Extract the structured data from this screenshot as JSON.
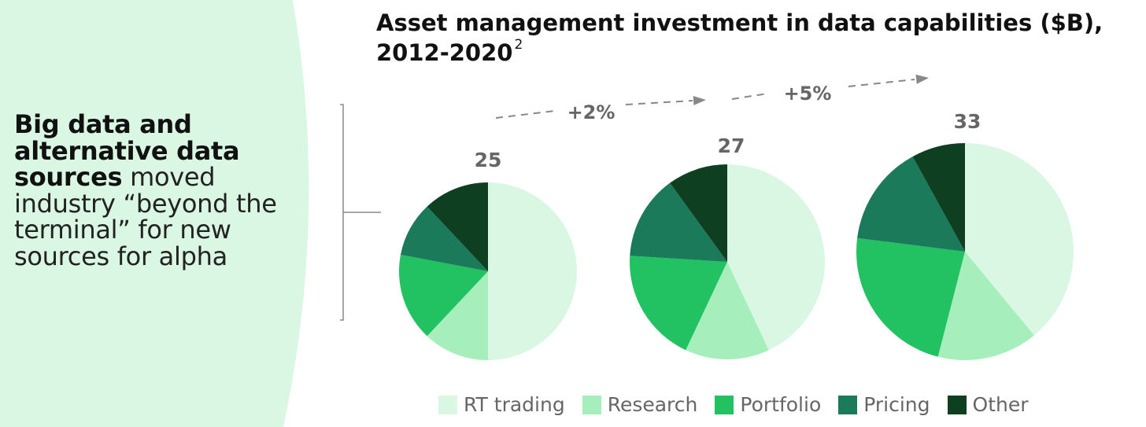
{
  "left_panel": {
    "text_bold": "Big data and alternative data sources",
    "text_rest": " moved industry “beyond the terminal” for new sources for alpha",
    "bg_color": "#d9f7e3"
  },
  "chart_data": {
    "type": "pie",
    "title": "Asset management investment in data capabilities ($B), 2012-2020",
    "title_footnote": "2",
    "categories": [
      "RT trading",
      "Research",
      "Portfolio",
      "Pricing",
      "Other"
    ],
    "colors": [
      "#d9f7e3",
      "#a6efbd",
      "#22c262",
      "#1b7a59",
      "#0f3f21"
    ],
    "pies": [
      {
        "total": 25,
        "label": "25",
        "values": [
          50,
          12,
          16,
          10,
          12
        ]
      },
      {
        "total": 27,
        "label": "27",
        "values": [
          43,
          14,
          19,
          14,
          10
        ]
      },
      {
        "total": 33,
        "label": "33",
        "values": [
          39,
          15,
          23,
          15,
          8
        ]
      }
    ],
    "growth": [
      {
        "label": "+2%"
      },
      {
        "label": "+5%"
      }
    ],
    "legend_position": "bottom"
  }
}
